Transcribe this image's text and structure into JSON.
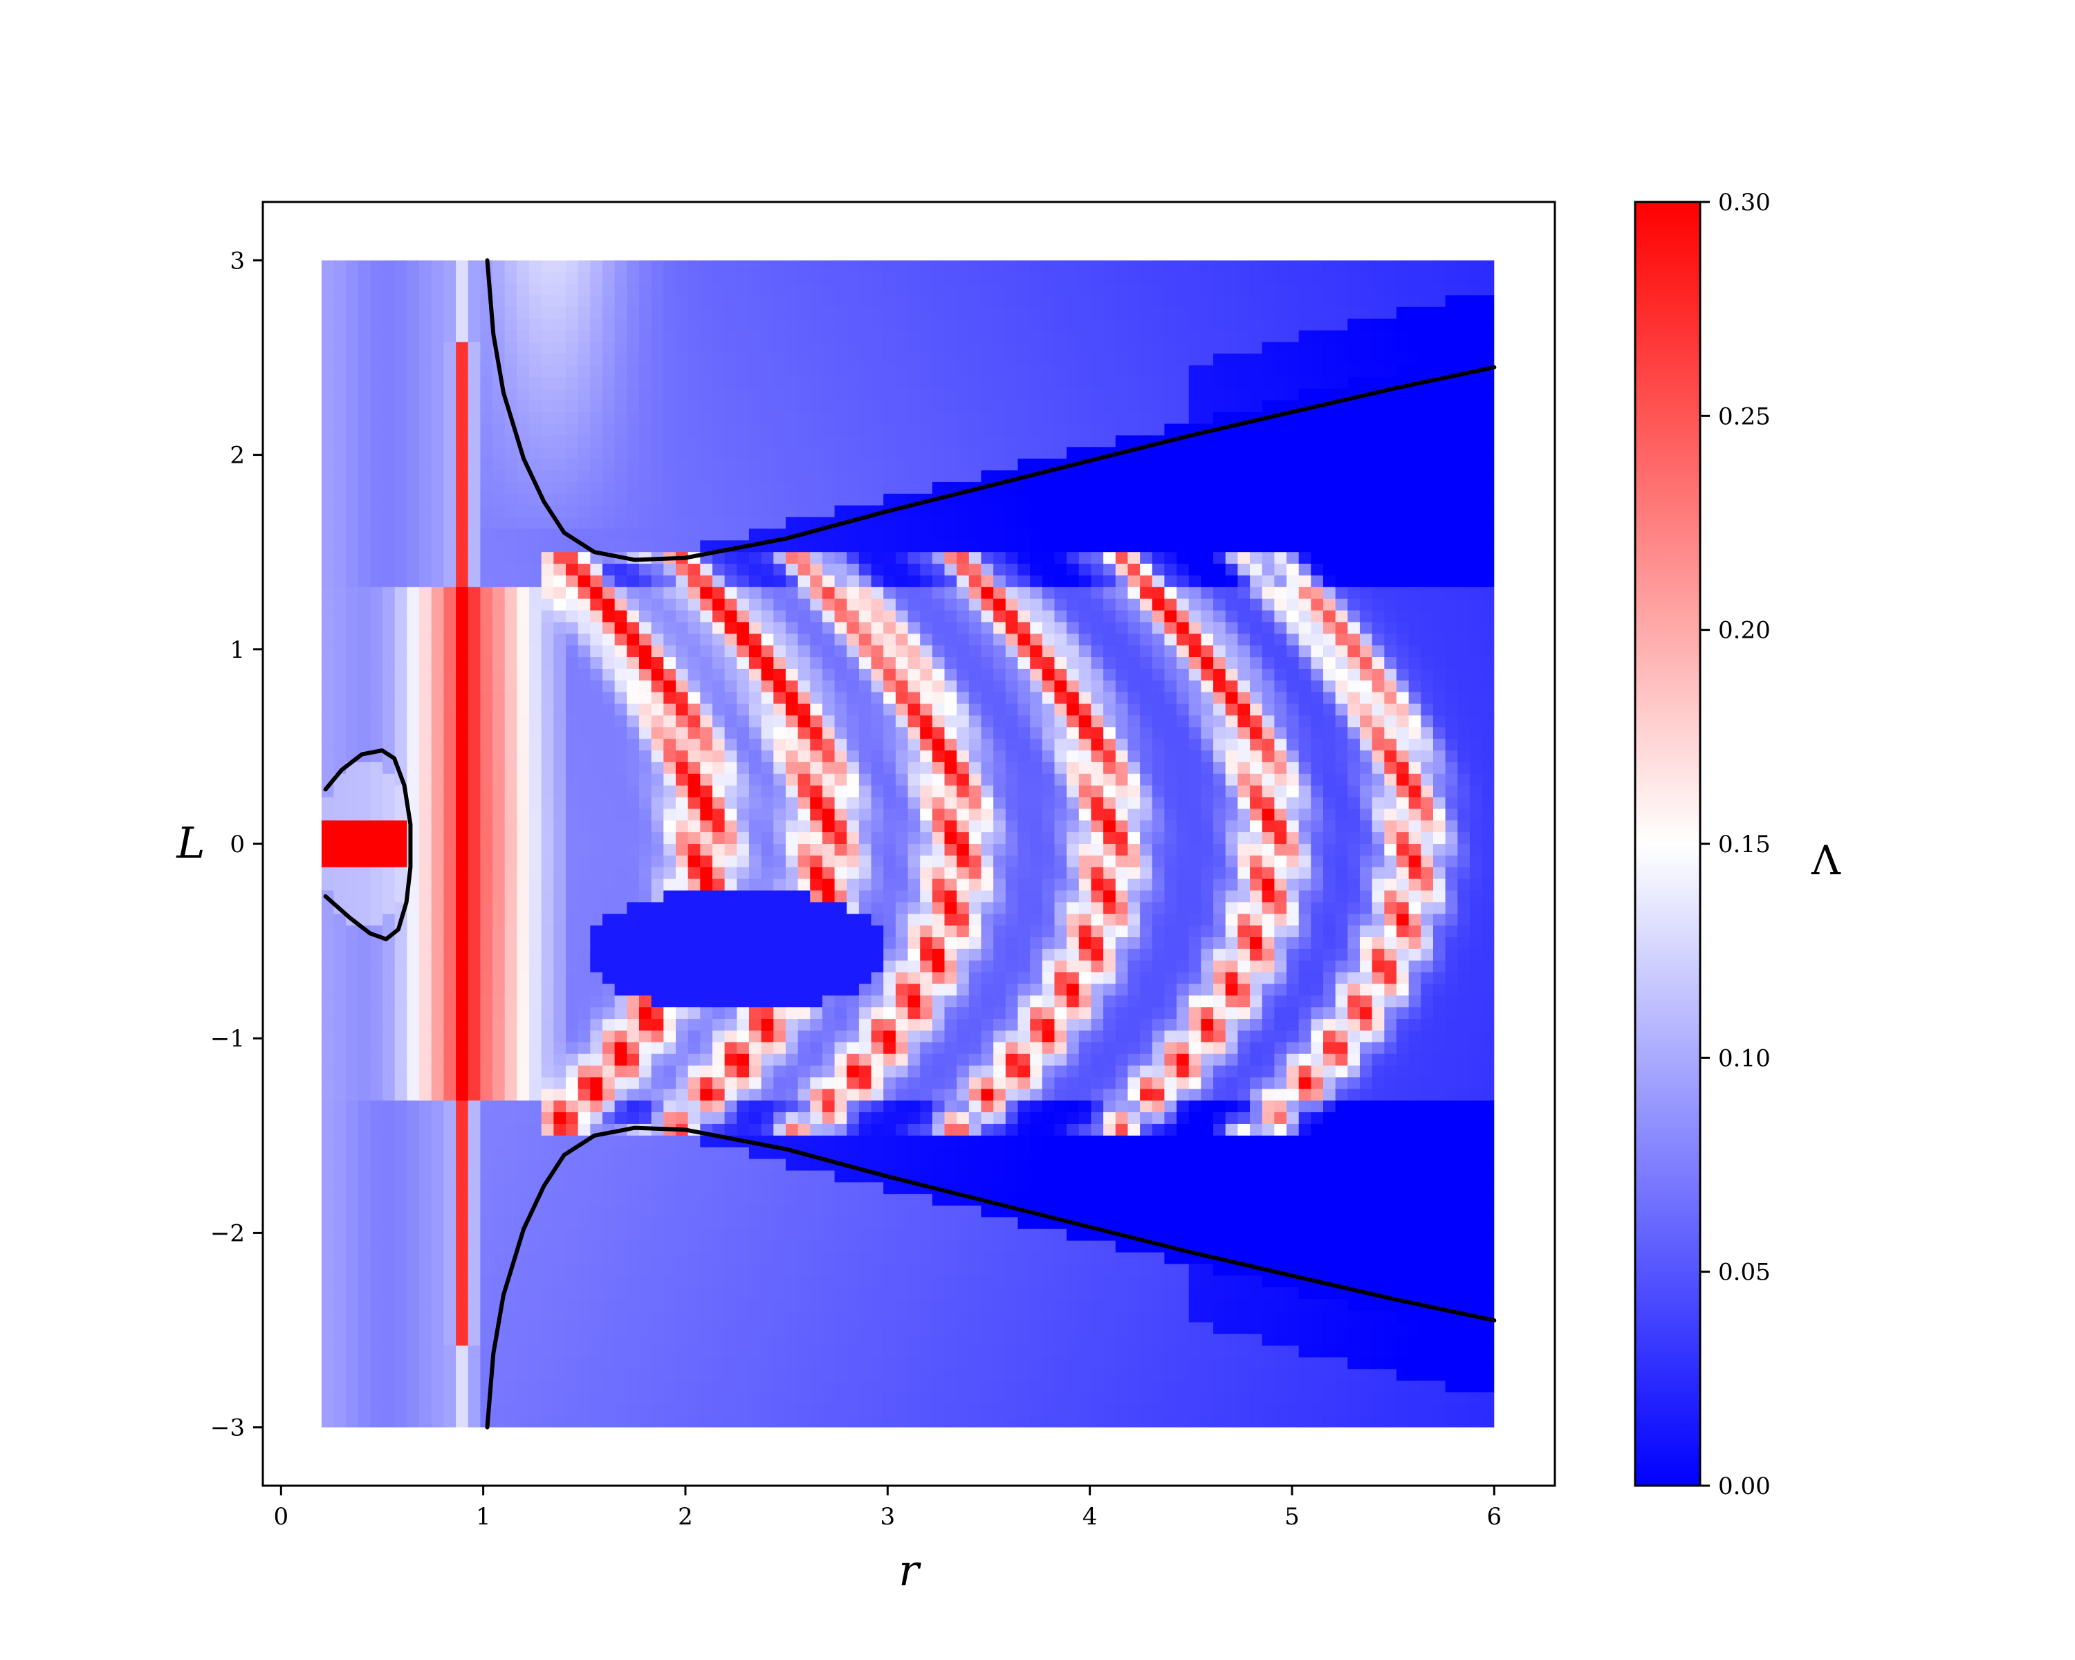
{
  "chart_data": {
    "type": "heatmap",
    "title": "",
    "xlabel": "r",
    "ylabel": "L",
    "xlim": [
      -0.09,
      6.3
    ],
    "ylim": [
      -3.3,
      3.3
    ],
    "data_extent": {
      "x": [
        0.2,
        6.0
      ],
      "y": [
        -3.0,
        3.0
      ]
    },
    "x_ticks": [
      0,
      1,
      2,
      3,
      4,
      5,
      6
    ],
    "x_tick_labels": [
      "0",
      "1",
      "2",
      "3",
      "4",
      "5",
      "6"
    ],
    "y_ticks": [
      -3,
      -2,
      -1,
      0,
      1,
      2,
      3
    ],
    "y_tick_labels": [
      "−3",
      "−2",
      "−1",
      "0",
      "1",
      "2",
      "3"
    ],
    "grid": false,
    "colormap": "bwr",
    "colormap_colors": [
      "#0000ff",
      "#ffffff",
      "#ff0000"
    ],
    "colorbar": {
      "label": "Λ",
      "range": [
        0.0,
        0.3
      ],
      "ticks": [
        0.0,
        0.05,
        0.1,
        0.15,
        0.2,
        0.25,
        0.3
      ],
      "tick_labels": [
        "0.00",
        "0.05",
        "0.10",
        "0.15",
        "0.20",
        "0.25",
        "0.30"
      ]
    },
    "curves": [
      {
        "color": "#000000",
        "points": [
          [
            1.02,
            3.0
          ],
          [
            1.05,
            2.62
          ],
          [
            1.1,
            2.32
          ],
          [
            1.2,
            1.98
          ],
          [
            1.3,
            1.76
          ],
          [
            1.4,
            1.6
          ],
          [
            1.55,
            1.5
          ],
          [
            1.75,
            1.46
          ],
          [
            2.0,
            1.47
          ],
          [
            2.5,
            1.57
          ],
          [
            3.0,
            1.71
          ],
          [
            3.5,
            1.84
          ],
          [
            4.0,
            1.97
          ],
          [
            4.5,
            2.1
          ],
          [
            5.0,
            2.22
          ],
          [
            5.5,
            2.34
          ],
          [
            6.0,
            2.45
          ]
        ]
      },
      {
        "color": "#000000",
        "points": [
          [
            1.02,
            -3.0
          ],
          [
            1.05,
            -2.62
          ],
          [
            1.1,
            -2.32
          ],
          [
            1.2,
            -1.98
          ],
          [
            1.3,
            -1.76
          ],
          [
            1.4,
            -1.6
          ],
          [
            1.55,
            -1.5
          ],
          [
            1.75,
            -1.46
          ],
          [
            2.0,
            -1.47
          ],
          [
            2.5,
            -1.57
          ],
          [
            3.0,
            -1.71
          ],
          [
            3.5,
            -1.84
          ],
          [
            4.0,
            -1.97
          ],
          [
            4.5,
            -2.1
          ],
          [
            5.0,
            -2.22
          ],
          [
            5.5,
            -2.34
          ],
          [
            6.0,
            -2.45
          ]
        ]
      },
      {
        "color": "#000000",
        "points": [
          [
            0.22,
            0.28
          ],
          [
            0.3,
            0.38
          ],
          [
            0.4,
            0.46
          ],
          [
            0.5,
            0.48
          ],
          [
            0.56,
            0.44
          ],
          [
            0.61,
            0.3
          ],
          [
            0.64,
            0.1
          ],
          [
            0.64,
            -0.12
          ],
          [
            0.62,
            -0.3
          ],
          [
            0.58,
            -0.44
          ],
          [
            0.52,
            -0.49
          ],
          [
            0.44,
            -0.46
          ],
          [
            0.34,
            -0.38
          ],
          [
            0.22,
            -0.27
          ]
        ]
      }
    ]
  }
}
